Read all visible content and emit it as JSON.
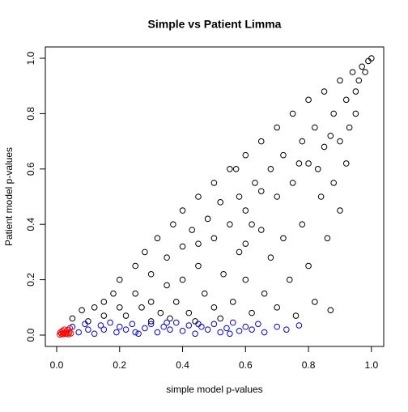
{
  "chart_data": {
    "type": "scatter",
    "title": "Simple vs Patient Limma",
    "x_label": "simple model p-values",
    "y_label": "Patient model p-values",
    "xlim": [
      -0.036,
      1.039
    ],
    "ylim": [
      -0.041,
      1.041
    ],
    "xticks": [
      {
        "value": 0,
        "label": "0.0"
      },
      0.2,
      0.4,
      0.6,
      0.8,
      {
        "value": 1,
        "label": "1.0"
      }
    ],
    "yticks": [
      {
        "value": 0,
        "label": "0.0"
      },
      0.2,
      0.4,
      0.6,
      0.8,
      {
        "value": 1,
        "label": "1.0"
      }
    ],
    "series": [
      {
        "color": "#000000",
        "x": [
          0.05,
          0.08,
          0.1,
          0.12,
          0.15,
          0.15,
          0.18,
          0.2,
          0.2,
          0.22,
          0.25,
          0.25,
          0.27,
          0.28,
          0.3,
          0.3,
          0.32,
          0.33,
          0.35,
          0.35,
          0.37,
          0.38,
          0.4,
          0.4,
          0.4,
          0.42,
          0.43,
          0.45,
          0.45,
          0.47,
          0.48,
          0.5,
          0.5,
          0.5,
          0.52,
          0.53,
          0.55,
          0.55,
          0.56,
          0.58,
          0.58,
          0.6,
          0.6,
          0.6,
          0.62,
          0.63,
          0.65,
          0.65,
          0.66,
          0.68,
          0.68,
          0.7,
          0.7,
          0.7,
          0.72,
          0.72,
          0.74,
          0.75,
          0.75,
          0.76,
          0.78,
          0.78,
          0.8,
          0.8,
          0.8,
          0.82,
          0.82,
          0.84,
          0.85,
          0.85,
          0.86,
          0.87,
          0.88,
          0.88,
          0.9,
          0.9,
          0.9,
          0.92,
          0.92,
          0.93,
          0.94,
          0.95,
          0.95,
          0.96,
          0.97,
          0.98,
          0.99,
          1.0,
          0.3,
          0.36,
          0.44,
          0.52,
          0.6,
          0.57,
          0.45,
          0.65,
          0.77,
          0.83,
          0.87,
          0.62
        ],
        "values": [
          0.06,
          0.09,
          0.05,
          0.1,
          0.12,
          0.07,
          0.15,
          0.2,
          0.1,
          0.07,
          0.25,
          0.15,
          0.1,
          0.3,
          0.22,
          0.12,
          0.35,
          0.08,
          0.28,
          0.18,
          0.4,
          0.12,
          0.45,
          0.32,
          0.2,
          0.08,
          0.38,
          0.5,
          0.25,
          0.15,
          0.42,
          0.55,
          0.35,
          0.1,
          0.48,
          0.22,
          0.6,
          0.4,
          0.12,
          0.5,
          0.3,
          0.65,
          0.45,
          0.2,
          0.08,
          0.55,
          0.7,
          0.38,
          0.15,
          0.6,
          0.28,
          0.75,
          0.5,
          0.1,
          0.65,
          0.35,
          0.2,
          0.8,
          0.55,
          0.07,
          0.7,
          0.4,
          0.85,
          0.62,
          0.25,
          0.75,
          0.12,
          0.5,
          0.88,
          0.68,
          0.35,
          0.09,
          0.8,
          0.55,
          0.92,
          0.7,
          0.45,
          0.85,
          0.62,
          0.75,
          0.95,
          0.88,
          0.8,
          0.92,
          0.97,
          0.95,
          0.99,
          1.0,
          0.05,
          0.06,
          0.05,
          0.06,
          0.33,
          0.6,
          0.33,
          0.52,
          0.62,
          0.6,
          0.72,
          0.4
        ]
      },
      {
        "color": "#0000ff",
        "x": [
          0.05,
          0.07,
          0.09,
          0.1,
          0.12,
          0.14,
          0.15,
          0.17,
          0.19,
          0.2,
          0.22,
          0.24,
          0.26,
          0.28,
          0.3,
          0.32,
          0.34,
          0.36,
          0.38,
          0.4,
          0.42,
          0.44,
          0.46,
          0.48,
          0.5,
          0.52,
          0.54,
          0.56,
          0.58,
          0.6,
          0.62,
          0.64,
          0.66,
          0.7,
          0.73,
          0.77,
          0.25,
          0.35,
          0.45,
          0.55
        ],
        "values": [
          0.03,
          0.01,
          0.04,
          0.02,
          0.005,
          0.035,
          0.02,
          0.045,
          0.01,
          0.03,
          0.02,
          0.04,
          0.005,
          0.025,
          0.04,
          0.01,
          0.03,
          0.02,
          0.045,
          0.015,
          0.035,
          0.005,
          0.03,
          0.02,
          0.04,
          0.01,
          0.025,
          0.045,
          0.015,
          0.03,
          0.02,
          0.04,
          0.01,
          0.03,
          0.02,
          0.035,
          0.01,
          0.045,
          0.04,
          0.005
        ]
      },
      {
        "color": "#ff0000",
        "x": [
          0.01,
          0.012,
          0.015,
          0.018,
          0.02,
          0.022,
          0.025,
          0.028,
          0.03,
          0.032,
          0.035,
          0.038,
          0.04,
          0.042,
          0.045
        ],
        "values": [
          0.002,
          0.01,
          0.005,
          0.015,
          0.003,
          0.008,
          0.02,
          0.004,
          0.012,
          0.006,
          0.018,
          0.003,
          0.01,
          0.025,
          0.006
        ]
      }
    ]
  }
}
